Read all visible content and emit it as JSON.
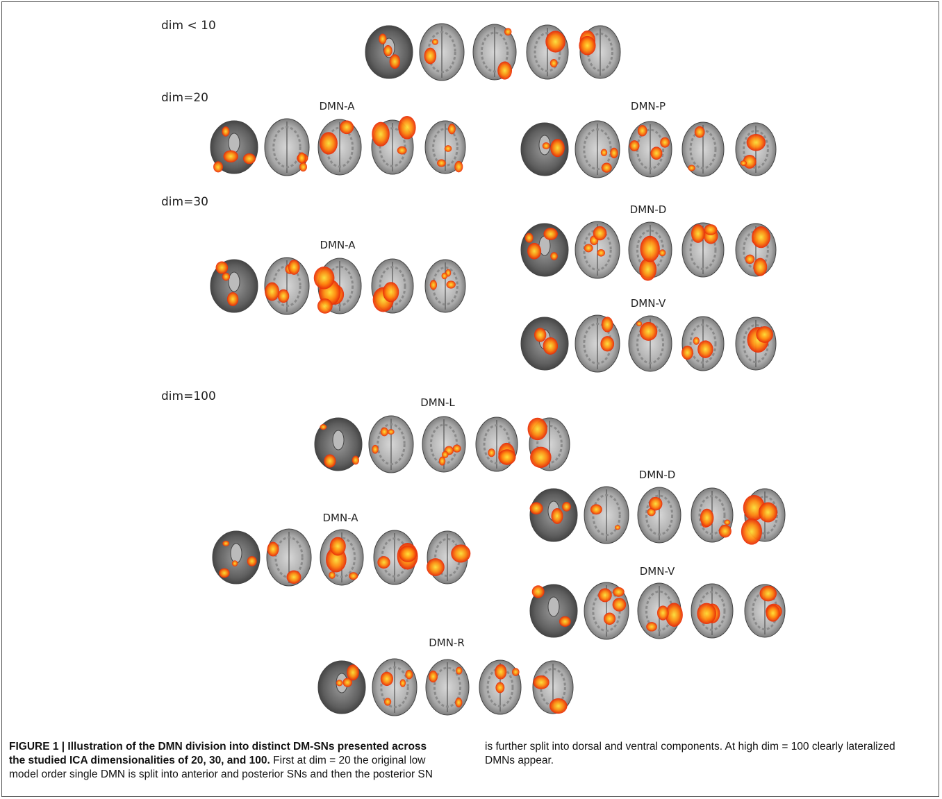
{
  "figure": {
    "dimension_labels": [
      "dim < 10",
      "dim=20",
      "dim=30",
      "dim=100"
    ],
    "network_labels": [
      "DMN-A",
      "DMN-P",
      "DMN-D",
      "DMN-A",
      "DMN-V",
      "DMN-L",
      "DMN-D",
      "DMN-A",
      "DMN-V",
      "DMN-R"
    ],
    "caption": {
      "title": "FIGURE 1 | Illustration of the DMN division into distinct DM-SNs presented across the studied ICA dimensionalities of 20, 30, and 100.",
      "text": "First at dim = 20 the original low model order single DMN is split into anterior and posterior SNs and then the posterior SN is further split into dorsal and ventral components. At high dim = 100 clearly lateralized DMNs appear."
    }
  }
}
